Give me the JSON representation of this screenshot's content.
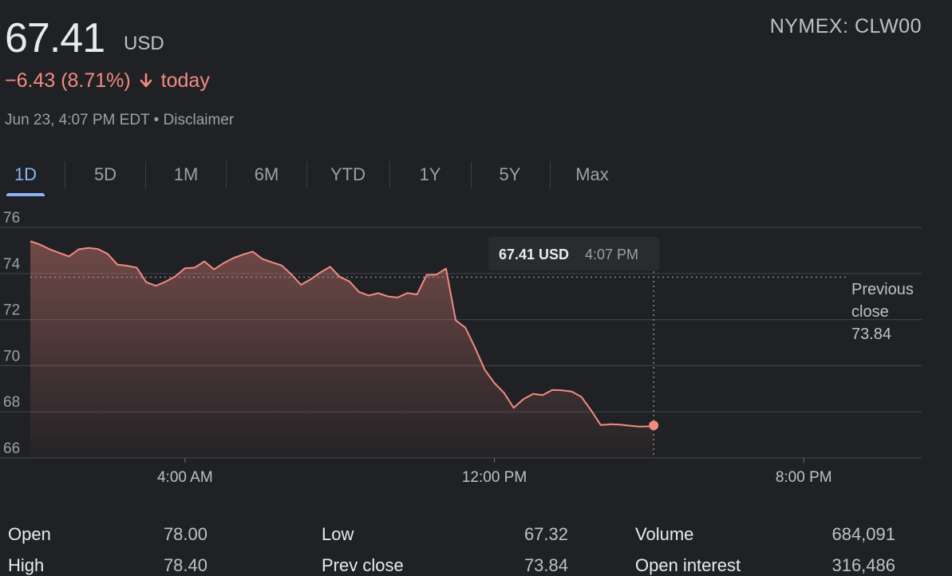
{
  "quote": {
    "price": "67.41",
    "currency": "USD",
    "ticker": "NYMEX: CLW00",
    "change": "−6.43 (8.71%)",
    "change_suffix": "today",
    "timestamp": "Jun 23, 4:07 PM EDT",
    "separator": "•",
    "disclaimer": "Disclaimer",
    "colors": {
      "down": "#f28b82",
      "active_tab": "#8ab4f8"
    }
  },
  "tabs": [
    {
      "label": "1D",
      "active": true
    },
    {
      "label": "5D",
      "active": false
    },
    {
      "label": "1M",
      "active": false
    },
    {
      "label": "6M",
      "active": false
    },
    {
      "label": "YTD",
      "active": false
    },
    {
      "label": "1Y",
      "active": false
    },
    {
      "label": "5Y",
      "active": false
    },
    {
      "label": "Max",
      "active": false
    }
  ],
  "chart_data": {
    "type": "area",
    "ylim": [
      66,
      76
    ],
    "y_ticks": [
      "76",
      "74",
      "72",
      "70",
      "68",
      "66"
    ],
    "x_range_hours": [
      0,
      23.05
    ],
    "x_ticks": [
      {
        "label": "4:00 AM",
        "hour": 4
      },
      {
        "label": "12:00 PM",
        "hour": 12
      },
      {
        "label": "8:00 PM",
        "hour": 20
      }
    ],
    "previous_close": {
      "label_line1": "Previous",
      "label_line2": "close",
      "value": "73.84",
      "y": 73.84
    },
    "tooltip": {
      "price": "67.41 USD",
      "time": "4:07 PM",
      "hour": 16.12,
      "y": 67.41
    },
    "series": [
      {
        "x": [
          0.0,
          0.25,
          0.5,
          0.75,
          1.0,
          1.25,
          1.5,
          1.75,
          2.0,
          2.25,
          2.5,
          2.75,
          3.0,
          3.25,
          3.5,
          3.75,
          4.0,
          4.25,
          4.5,
          4.75,
          5.0,
          5.25,
          5.5,
          5.75,
          6.0,
          6.25,
          6.5,
          6.75,
          7.0,
          7.25,
          7.5,
          7.75,
          8.0,
          8.25,
          8.5,
          8.75,
          9.0,
          9.25,
          9.5,
          9.75,
          10.0,
          10.25,
          10.5,
          10.75,
          11.0,
          11.25,
          11.5,
          11.75,
          12.0,
          12.25,
          12.5,
          12.75,
          13.0,
          13.25,
          13.5,
          13.75,
          14.0,
          14.25,
          14.5,
          14.75,
          15.0,
          15.25,
          15.5,
          15.75,
          16.0,
          16.12
        ],
        "y": [
          75.4,
          75.3,
          75.1,
          74.9,
          74.7,
          75.0,
          75.1,
          75.1,
          74.9,
          74.4,
          74.3,
          74.2,
          73.6,
          73.5,
          73.7,
          73.9,
          74.2,
          74.2,
          74.5,
          74.2,
          74.5,
          74.7,
          74.8,
          74.9,
          74.6,
          74.5,
          74.4,
          74.0,
          73.5,
          73.7,
          74.0,
          74.3,
          73.9,
          73.7,
          73.2,
          73.0,
          73.1,
          73.0,
          73.0,
          73.2,
          73.1,
          73.9,
          73.9,
          74.2,
          72.0,
          71.7,
          70.8,
          69.8,
          69.2,
          68.8,
          68.2,
          68.6,
          68.8,
          68.7,
          68.9,
          68.9,
          68.9,
          68.7,
          68.1,
          67.41,
          67.41,
          67.41,
          67.41,
          67.41,
          67.41,
          67.41
        ]
      }
    ]
  },
  "stats": {
    "left": [
      {
        "label": "Open",
        "value": "78.00"
      },
      {
        "label": "High",
        "value": "78.40"
      }
    ],
    "middle": [
      {
        "label": "Low",
        "value": "67.32"
      },
      {
        "label": "Prev close",
        "value": "73.84"
      }
    ],
    "right": [
      {
        "label": "Volume",
        "value": "684,091"
      },
      {
        "label": "Open interest",
        "value": "316,486"
      }
    ]
  }
}
